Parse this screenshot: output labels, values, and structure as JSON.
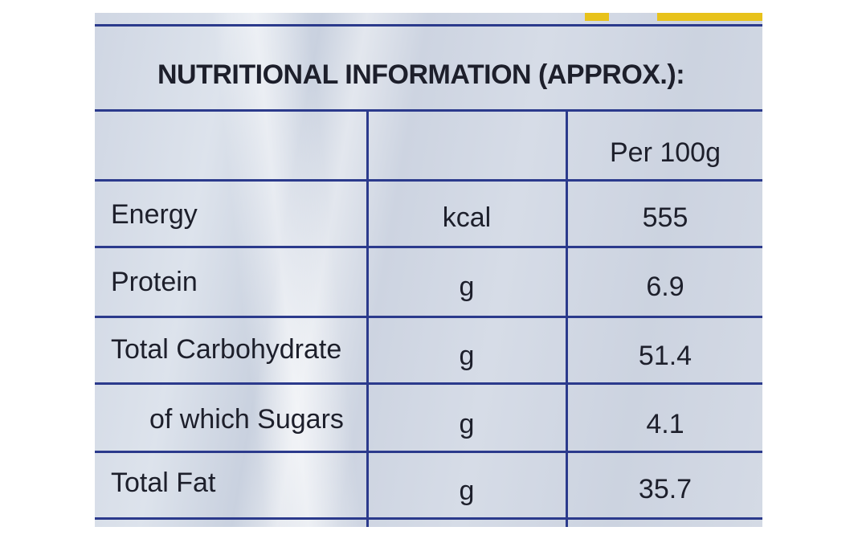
{
  "title": "NUTRITIONAL INFORMATION (APPROX.):",
  "header": {
    "col3": "Per 100g"
  },
  "rows": [
    {
      "name": "Energy",
      "unit": "kcal",
      "value": "555"
    },
    {
      "name": "Protein",
      "unit": "g",
      "value": "6.9"
    },
    {
      "name": "Total Carbohydrate",
      "unit": "g",
      "value": "51.4"
    },
    {
      "name": "of which Sugars",
      "unit": "g",
      "value": "4.1"
    },
    {
      "name": "Total Fat",
      "unit": "g",
      "value": "35.7"
    }
  ],
  "colors": {
    "line": "#2b3a8c",
    "text": "#1d1f2b",
    "background": "#d4dae5",
    "stripe": "#e8c21a"
  }
}
